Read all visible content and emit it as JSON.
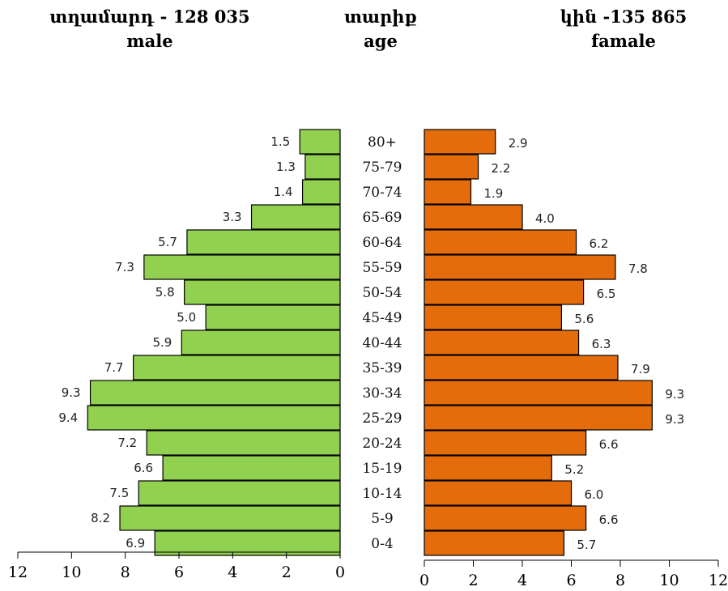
{
  "headers": {
    "male_title": "տղամարդ  - 128 035",
    "male_subtitle": "male",
    "age_title": "տարիք",
    "age_subtitle": "age",
    "female_title": "կին -135 865",
    "female_subtitle": "famale"
  },
  "colors": {
    "male_bar": "#92d050",
    "female_bar": "#e46c0a",
    "bar_stroke": "#000000"
  },
  "chart_data": {
    "type": "bar",
    "orientation": "horizontal-pyramid",
    "categories": [
      "80+",
      "75-79",
      "70-74",
      "65-69",
      "60-64",
      "55-59",
      "50-54",
      "45-49",
      "40-44",
      "35-39",
      "30-34",
      "25-29",
      "20-24",
      "15-19",
      "10-14",
      "5-9",
      "0-4"
    ],
    "series": [
      {
        "name": "male",
        "values": [
          1.5,
          1.3,
          1.4,
          3.3,
          5.7,
          7.3,
          5.8,
          5.0,
          5.9,
          7.7,
          9.3,
          9.4,
          7.2,
          6.6,
          7.5,
          8.2,
          6.9
        ]
      },
      {
        "name": "famale",
        "values": [
          2.9,
          2.2,
          1.9,
          4.0,
          6.2,
          7.8,
          6.5,
          5.6,
          6.3,
          7.9,
          9.3,
          9.3,
          6.6,
          5.2,
          6.0,
          6.6,
          5.7
        ]
      }
    ],
    "value_labels": {
      "male": [
        "1.5",
        "1.3",
        "1.4",
        "3.3",
        "5.7",
        "7.3",
        "5.8",
        "5.0",
        "5.9",
        "7.7",
        "9.3",
        "9.4",
        "7.2",
        "6.6",
        "7.5",
        "8.2",
        "6.9"
      ],
      "famale": [
        "2.9",
        "2.2",
        "1.9",
        "4.0",
        "6.2",
        "7.8",
        "6.5",
        "5.6",
        "6.3",
        "7.9",
        "9.3",
        "9.3",
        "6.6",
        "5.2",
        "6.0",
        "6.6",
        "5.7"
      ]
    },
    "male_axis": {
      "range": [
        12,
        0
      ],
      "ticks": [
        "12",
        "10",
        "8",
        "6",
        "4",
        "2",
        "0"
      ]
    },
    "female_axis": {
      "range": [
        0,
        12
      ],
      "ticks": [
        "0",
        "2",
        "4",
        "6",
        "8",
        "10",
        "12"
      ]
    },
    "grid": false,
    "legend": "none"
  }
}
